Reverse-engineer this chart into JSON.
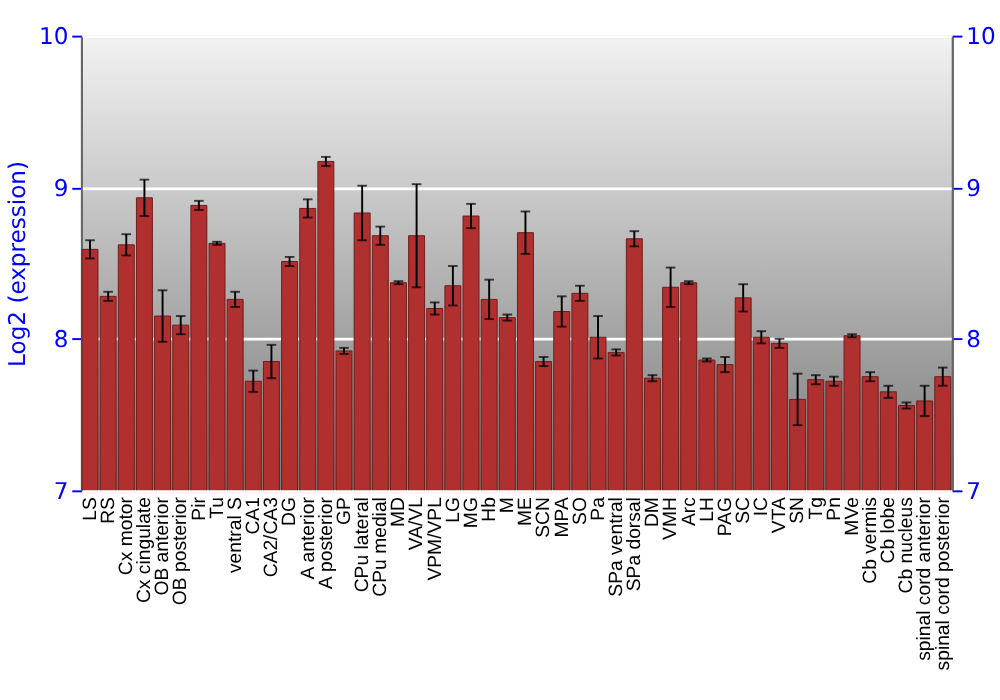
{
  "chart_data": {
    "type": "bar",
    "ylabel": "Log2 (expression)",
    "categories": [
      "LS",
      "RS",
      "Cx motor",
      "Cx cingulate",
      "OB anterior",
      "OB posterior",
      "Pir",
      "Tu",
      "ventral S",
      "CA1",
      "CA2/CA3",
      "DG",
      "A anterior",
      "A posterior",
      "GP",
      "CPu lateral",
      "CPu medial",
      "MD",
      "VA/VL",
      "VPM/VPL",
      "LG",
      "MG",
      "Hb",
      "M",
      "ME",
      "SCN",
      "MPA",
      "SO",
      "Pa",
      "SPa ventral",
      "SPa dorsal",
      "DM",
      "VMH",
      "Arc",
      "LH",
      "PAG",
      "SC",
      "IC",
      "VTA",
      "SN",
      "Tg",
      "Pn",
      "MVe",
      "Cb vermis",
      "Cb lobe",
      "Cb nucleus",
      "spinal cord anterior",
      "spinal cord posterior"
    ],
    "values": [
      8.59,
      8.28,
      8.62,
      8.93,
      8.15,
      8.09,
      8.88,
      8.63,
      8.26,
      7.72,
      7.85,
      8.51,
      8.86,
      9.17,
      7.92,
      8.83,
      8.68,
      8.37,
      8.68,
      8.2,
      8.35,
      8.81,
      8.26,
      8.14,
      8.7,
      7.85,
      8.18,
      8.3,
      8.01,
      7.91,
      8.66,
      7.74,
      8.34,
      8.37,
      7.86,
      7.83,
      8.27,
      8.01,
      7.97,
      7.6,
      7.73,
      7.72,
      8.02,
      7.75,
      7.65,
      7.56,
      7.59,
      7.75
    ],
    "errors": [
      0.06,
      0.03,
      0.07,
      0.12,
      0.17,
      0.06,
      0.03,
      0.01,
      0.05,
      0.07,
      0.11,
      0.03,
      0.06,
      0.03,
      0.02,
      0.18,
      0.06,
      0.01,
      0.34,
      0.04,
      0.13,
      0.08,
      0.13,
      0.02,
      0.14,
      0.03,
      0.1,
      0.05,
      0.14,
      0.02,
      0.05,
      0.02,
      0.13,
      0.01,
      0.01,
      0.05,
      0.09,
      0.04,
      0.03,
      0.17,
      0.03,
      0.03,
      0.01,
      0.03,
      0.04,
      0.02,
      0.1,
      0.06
    ],
    "color": "#b03030",
    "ylim": [
      7,
      10
    ],
    "yticks": [
      7,
      8,
      9,
      10
    ],
    "y2lim": [
      7,
      10
    ],
    "y2ticks": [
      7,
      8,
      9,
      10
    ],
    "grid": "y"
  }
}
